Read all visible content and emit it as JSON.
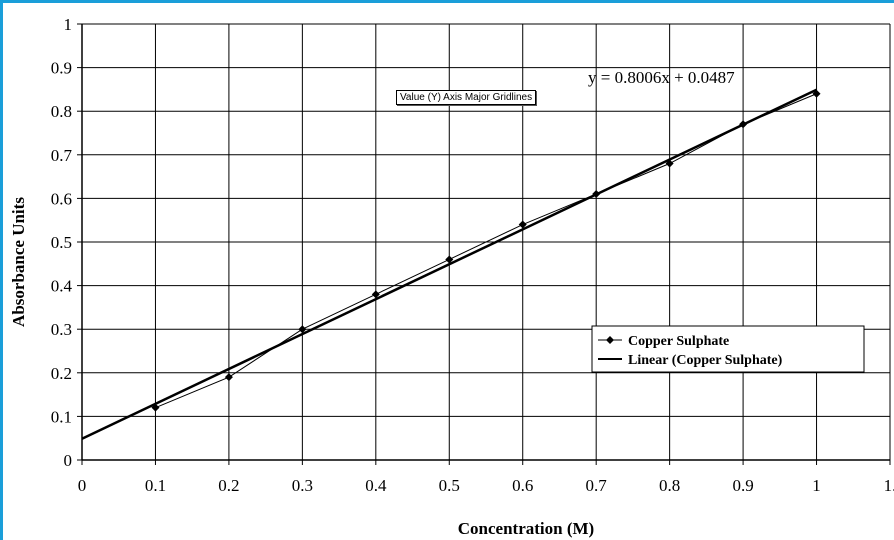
{
  "chart_data": {
    "type": "scatter",
    "title": "",
    "xlabel": "Concentration (M)",
    "ylabel": "Absorbance Units",
    "xlim": [
      0,
      1.1
    ],
    "ylim": [
      0,
      1
    ],
    "xticks": [
      "0",
      "0.1",
      "0.2",
      "0.3",
      "0.4",
      "0.5",
      "0.6",
      "0.7",
      "0.8",
      "0.9",
      "1",
      "1."
    ],
    "yticks": [
      "0",
      "0.1",
      "0.2",
      "0.3",
      "0.4",
      "0.5",
      "0.6",
      "0.7",
      "0.8",
      "0.9",
      "1"
    ],
    "grid": true,
    "series": [
      {
        "name": "Copper Sulphate",
        "type": "line-with-markers",
        "color": "#000000",
        "x": [
          0.1,
          0.2,
          0.3,
          0.4,
          0.5,
          0.6,
          0.7,
          0.8,
          0.9,
          1.0
        ],
        "y": [
          0.12,
          0.19,
          0.3,
          0.38,
          0.46,
          0.54,
          0.61,
          0.68,
          0.77,
          0.84
        ]
      },
      {
        "name": "Linear (Copper Sulphate)",
        "type": "trendline",
        "color": "#000000",
        "slope": 0.8006,
        "intercept": 0.0487,
        "x": [
          0,
          1.0
        ]
      }
    ],
    "equation": "y = 0.8006x + 0.0487",
    "legend_position": "right",
    "tooltip": "Value (Y) Axis Major Gridlines"
  }
}
